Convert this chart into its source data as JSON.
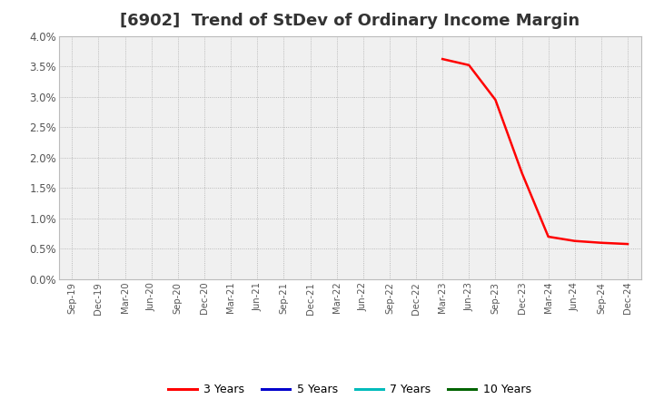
{
  "title": "[6902]  Trend of StDev of Ordinary Income Margin",
  "x_labels": [
    "Sep-19",
    "Dec-19",
    "Mar-20",
    "Jun-20",
    "Sep-20",
    "Dec-20",
    "Mar-21",
    "Jun-21",
    "Sep-21",
    "Dec-21",
    "Mar-22",
    "Jun-22",
    "Sep-22",
    "Dec-22",
    "Mar-23",
    "Jun-23",
    "Sep-23",
    "Dec-23",
    "Mar-24",
    "Jun-24",
    "Sep-24",
    "Dec-24"
  ],
  "series_3y": {
    "label": "3 Years",
    "color": "#ff0000",
    "values": [
      null,
      null,
      null,
      null,
      null,
      null,
      null,
      null,
      null,
      null,
      null,
      null,
      null,
      null,
      0.0362,
      0.0352,
      0.0295,
      0.0175,
      0.007,
      0.0063,
      0.006,
      0.0058
    ]
  },
  "series_5y": {
    "label": "5 Years",
    "color": "#0000cc",
    "values": [
      null,
      null,
      null,
      null,
      null,
      null,
      null,
      null,
      null,
      null,
      null,
      null,
      null,
      null,
      null,
      null,
      null,
      null,
      null,
      null,
      null,
      null
    ]
  },
  "series_7y": {
    "label": "7 Years",
    "color": "#00bbbb",
    "values": [
      null,
      null,
      null,
      null,
      null,
      null,
      null,
      null,
      null,
      null,
      null,
      null,
      null,
      null,
      null,
      null,
      null,
      null,
      null,
      null,
      null,
      null
    ]
  },
  "series_10y": {
    "label": "10 Years",
    "color": "#006400",
    "values": [
      null,
      null,
      null,
      null,
      null,
      null,
      null,
      null,
      null,
      null,
      null,
      null,
      null,
      null,
      null,
      null,
      null,
      null,
      null,
      null,
      null,
      null
    ]
  },
  "ylim": [
    0.0,
    0.04
  ],
  "ytick_values": [
    0.0,
    0.005,
    0.01,
    0.015,
    0.02,
    0.025,
    0.03,
    0.035,
    0.04
  ],
  "ytick_labels": [
    "0.0%",
    "0.5%",
    "1.0%",
    "1.5%",
    "2.0%",
    "2.5%",
    "3.0%",
    "3.5%",
    "4.0%"
  ],
  "background_color": "#ffffff",
  "plot_bg_color": "#f0f0f0",
  "grid_color": "#aaaaaa",
  "title_fontsize": 13,
  "title_color": "#333333",
  "tick_color": "#555555",
  "legend_colors": [
    "#ff0000",
    "#0000cc",
    "#00bbbb",
    "#006400"
  ],
  "legend_labels": [
    "3 Years",
    "5 Years",
    "7 Years",
    "10 Years"
  ]
}
